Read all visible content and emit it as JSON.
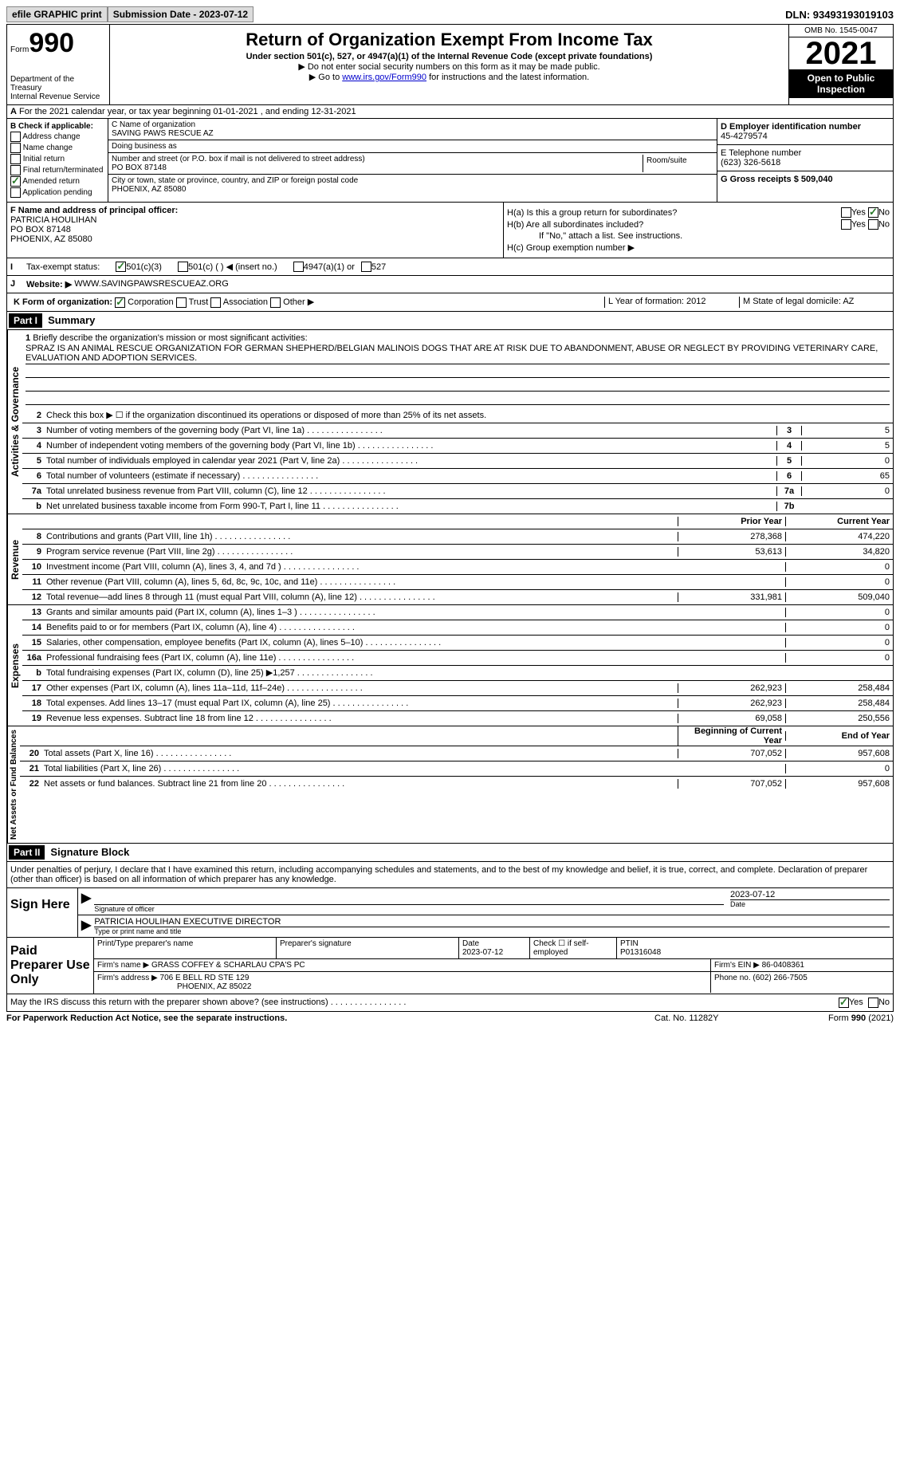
{
  "top": {
    "efile": "efile GRAPHIC print",
    "subdate": "Submission Date - 2023-07-12",
    "dln": "DLN: 93493193019103"
  },
  "header": {
    "form": "Form",
    "num": "990",
    "dept": "Department of the Treasury\nInternal Revenue Service",
    "title": "Return of Organization Exempt From Income Tax",
    "sub1": "Under section 501(c), 527, or 4947(a)(1) of the Internal Revenue Code (except private foundations)",
    "sub2": "▶ Do not enter social security numbers on this form as it may be made public.",
    "sub3_pre": "▶ Go to ",
    "sub3_link": "www.irs.gov/Form990",
    "sub3_post": " for instructions and the latest information.",
    "omb": "OMB No. 1545-0047",
    "year": "2021",
    "open": "Open to Public Inspection"
  },
  "a": "For the 2021 calendar year, or tax year beginning 01-01-2021   , and ending 12-31-2021",
  "b": {
    "hdr": "B Check if applicable:",
    "opts": [
      "Address change",
      "Name change",
      "Initial return",
      "Final return/terminated",
      "Amended return",
      "Application pending"
    ],
    "checked_idx": 4,
    "c_lbl": "C Name of organization",
    "c_name": "SAVING PAWS RESCUE AZ",
    "dba_lbl": "Doing business as",
    "dba": "",
    "addr_lbl": "Number and street (or P.O. box if mail is not delivered to street address)",
    "addr": "PO BOX 87148",
    "room_lbl": "Room/suite",
    "city_lbl": "City or town, state or province, country, and ZIP or foreign postal code",
    "city": "PHOENIX, AZ  85080",
    "d_lbl": "D Employer identification number",
    "ein": "45-4279574",
    "e_lbl": "E Telephone number",
    "phone": "(623) 326-5618",
    "g_lbl": "G Gross receipts $ 509,040"
  },
  "f": {
    "lbl": "F  Name and address of principal officer:",
    "name": "PATRICIA HOULIHAN",
    "addr": "PO BOX 87148",
    "city": "PHOENIX, AZ  85080",
    "ha": "H(a)  Is this a group return for subordinates?",
    "hb": "H(b)  Are all subordinates included?",
    "hb_note": "If \"No,\" attach a list. See instructions.",
    "hc": "H(c)  Group exemption number ▶",
    "yes": "Yes",
    "no": "No"
  },
  "i": {
    "lbl": "I",
    "txt": "Tax-exempt status:",
    "o1": "501(c)(3)",
    "o2": "501(c) (  ) ◀ (insert no.)",
    "o3": "4947(a)(1) or",
    "o4": "527"
  },
  "j": {
    "lbl": "J",
    "txt": "Website: ▶",
    "url": "WWW.SAVINGPAWSRESCUEAZ.ORG"
  },
  "k": {
    "lbl": "K Form of organization:",
    "o1": "Corporation",
    "o2": "Trust",
    "o3": "Association",
    "o4": "Other ▶",
    "l": "L Year of formation: 2012",
    "m": "M State of legal domicile: AZ"
  },
  "part1": {
    "hdr": "Part I",
    "title": "Summary",
    "vtext1": "Activities & Governance",
    "vtext2": "Revenue",
    "vtext3": "Expenses",
    "vtext4": "Net Assets or Fund Balances",
    "l1": "Briefly describe the organization's mission or most significant activities:",
    "mission": "SPRAZ IS AN ANIMAL RESCUE ORGANIZATION FOR GERMAN SHEPHERD/BELGIAN MALINOIS DOGS THAT ARE AT RISK DUE TO ABANDONMENT, ABUSE OR NEGLECT BY PROVIDING VETERINARY CARE, EVALUATION AND ADOPTION SERVICES.",
    "l2": "Check this box ▶ ☐ if the organization discontinued its operations or disposed of more than 25% of its net assets.",
    "lines_ag": [
      {
        "n": "3",
        "t": "Number of voting members of the governing body (Part VI, line 1a)",
        "bn": "3",
        "bv": "5"
      },
      {
        "n": "4",
        "t": "Number of independent voting members of the governing body (Part VI, line 1b)",
        "bn": "4",
        "bv": "5"
      },
      {
        "n": "5",
        "t": "Total number of individuals employed in calendar year 2021 (Part V, line 2a)",
        "bn": "5",
        "bv": "0"
      },
      {
        "n": "6",
        "t": "Total number of volunteers (estimate if necessary)",
        "bn": "6",
        "bv": "65"
      },
      {
        "n": "7a",
        "t": "Total unrelated business revenue from Part VIII, column (C), line 12",
        "bn": "7a",
        "bv": "0"
      },
      {
        "n": "b",
        "t": "Net unrelated business taxable income from Form 990-T, Part I, line 11",
        "bn": "7b",
        "bv": ""
      }
    ],
    "py_lbl": "Prior Year",
    "cy_lbl": "Current Year",
    "lines_rev": [
      {
        "n": "8",
        "t": "Contributions and grants (Part VIII, line 1h)",
        "py": "278,368",
        "cy": "474,220"
      },
      {
        "n": "9",
        "t": "Program service revenue (Part VIII, line 2g)",
        "py": "53,613",
        "cy": "34,820"
      },
      {
        "n": "10",
        "t": "Investment income (Part VIII, column (A), lines 3, 4, and 7d )",
        "py": "",
        "cy": "0"
      },
      {
        "n": "11",
        "t": "Other revenue (Part VIII, column (A), lines 5, 6d, 8c, 9c, 10c, and 11e)",
        "py": "",
        "cy": "0"
      },
      {
        "n": "12",
        "t": "Total revenue—add lines 8 through 11 (must equal Part VIII, column (A), line 12)",
        "py": "331,981",
        "cy": "509,040"
      }
    ],
    "lines_exp": [
      {
        "n": "13",
        "t": "Grants and similar amounts paid (Part IX, column (A), lines 1–3 )",
        "py": "",
        "cy": "0"
      },
      {
        "n": "14",
        "t": "Benefits paid to or for members (Part IX, column (A), line 4)",
        "py": "",
        "cy": "0"
      },
      {
        "n": "15",
        "t": "Salaries, other compensation, employee benefits (Part IX, column (A), lines 5–10)",
        "py": "",
        "cy": "0"
      },
      {
        "n": "16a",
        "t": "Professional fundraising fees (Part IX, column (A), line 11e)",
        "py": "",
        "cy": "0"
      },
      {
        "n": "b",
        "t": "Total fundraising expenses (Part IX, column (D), line 25) ▶1,257",
        "py": "shade",
        "cy": "shade"
      },
      {
        "n": "17",
        "t": "Other expenses (Part IX, column (A), lines 11a–11d, 11f–24e)",
        "py": "262,923",
        "cy": "258,484"
      },
      {
        "n": "18",
        "t": "Total expenses. Add lines 13–17 (must equal Part IX, column (A), line 25)",
        "py": "262,923",
        "cy": "258,484"
      },
      {
        "n": "19",
        "t": "Revenue less expenses. Subtract line 18 from line 12",
        "py": "69,058",
        "cy": "250,556"
      }
    ],
    "by_lbl": "Beginning of Current Year",
    "ey_lbl": "End of Year",
    "lines_net": [
      {
        "n": "20",
        "t": "Total assets (Part X, line 16)",
        "py": "707,052",
        "cy": "957,608"
      },
      {
        "n": "21",
        "t": "Total liabilities (Part X, line 26)",
        "py": "",
        "cy": "0"
      },
      {
        "n": "22",
        "t": "Net assets or fund balances. Subtract line 21 from line 20",
        "py": "707,052",
        "cy": "957,608"
      }
    ]
  },
  "part2": {
    "hdr": "Part II",
    "title": "Signature Block",
    "decl": "Under penalties of perjury, I declare that I have examined this return, including accompanying schedules and statements, and to the best of my knowledge and belief, it is true, correct, and complete. Declaration of preparer (other than officer) is based on all information of which preparer has any knowledge.",
    "sign_here": "Sign Here",
    "sig_off": "Signature of officer",
    "sig_date": "2023-07-12",
    "name_title": "PATRICIA HOULIHAN  EXECUTIVE DIRECTOR",
    "type_lbl": "Type or print name and title",
    "date_lbl": "Date",
    "paid": "Paid Preparer Use Only",
    "prep_name_lbl": "Print/Type preparer's name",
    "prep_sig_lbl": "Preparer's signature",
    "prep_date_lbl": "Date",
    "prep_date": "2023-07-12",
    "check_lbl": "Check ☐ if self-employed",
    "ptin_lbl": "PTIN",
    "ptin": "P01316048",
    "firm_name_lbl": "Firm's name    ▶",
    "firm_name": "GRASS COFFEY & SCHARLAU CPA'S PC",
    "firm_ein_lbl": "Firm's EIN ▶",
    "firm_ein": "86-0408361",
    "firm_addr_lbl": "Firm's address ▶",
    "firm_addr": "706 E BELL RD STE 129",
    "firm_city": "PHOENIX, AZ  85022",
    "phone_lbl": "Phone no.",
    "phone": "(602) 266-7505",
    "may_irs": "May the IRS discuss this return with the preparer shown above? (see instructions)",
    "yes": "Yes",
    "no": "No"
  },
  "footer": {
    "l": "For Paperwork Reduction Act Notice, see the separate instructions.",
    "c": "Cat. No. 11282Y",
    "r": "Form 990 (2021)"
  }
}
